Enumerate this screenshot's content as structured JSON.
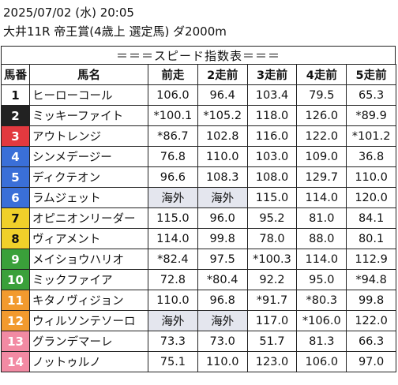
{
  "header": {
    "datetime": "2025/07/02 (水) 20:05",
    "race": "大井11R 帝王賞(4歳上 選定馬) ダ2000m"
  },
  "banner": "＝＝＝スピード指数表＝＝＝",
  "columns": [
    "馬番",
    "馬名",
    "前走",
    "2走前",
    "3走前",
    "4走前",
    "5走前"
  ],
  "rows": [
    {
      "no": "1",
      "name": "ヒーローコール",
      "bg": "#ffffff",
      "fg": "#111111",
      "v": [
        "106.0",
        "96.4",
        "103.4",
        "79.5",
        "65.3"
      ]
    },
    {
      "no": "2",
      "name": "ミッキーファイト",
      "bg": "#222222",
      "fg": "#ffffff",
      "v": [
        "*100.1",
        "*105.2",
        "118.0",
        "126.0",
        "*89.9"
      ]
    },
    {
      "no": "3",
      "name": "アウトレンジ",
      "bg": "#e2393f",
      "fg": "#ffffff",
      "v": [
        "*86.7",
        "102.8",
        "116.0",
        "122.0",
        "*101.2"
      ]
    },
    {
      "no": "4",
      "name": "シンメデージー",
      "bg": "#3a6fd8",
      "fg": "#ffffff",
      "v": [
        "76.8",
        "110.0",
        "103.0",
        "109.0",
        "36.8"
      ]
    },
    {
      "no": "5",
      "name": "ディクテオン",
      "bg": "#3a6fd8",
      "fg": "#ffffff",
      "v": [
        "96.6",
        "108.3",
        "108.0",
        "129.7",
        "110.0"
      ]
    },
    {
      "no": "6",
      "name": "ラムジェット",
      "bg": "#3a6fd8",
      "fg": "#ffffff",
      "v": [
        "海外",
        "海外",
        "115.0",
        "114.0",
        "120.0"
      ],
      "shade": [
        0,
        1
      ]
    },
    {
      "no": "7",
      "name": "オピニオンリーダー",
      "bg": "#f0d02a",
      "fg": "#111111",
      "v": [
        "115.0",
        "96.0",
        "95.2",
        "81.0",
        "84.1"
      ]
    },
    {
      "no": "8",
      "name": "ヴィアメント",
      "bg": "#f0d02a",
      "fg": "#111111",
      "v": [
        "114.0",
        "99.8",
        "78.0",
        "88.0",
        "80.1"
      ]
    },
    {
      "no": "9",
      "name": "メイショウハリオ",
      "bg": "#3aa03a",
      "fg": "#ffffff",
      "v": [
        "*82.4",
        "97.5",
        "*100.3",
        "114.0",
        "112.9"
      ]
    },
    {
      "no": "10",
      "name": "ミックファイア",
      "bg": "#3aa03a",
      "fg": "#ffffff",
      "v": [
        "72.8",
        "*80.4",
        "92.2",
        "95.0",
        "*94.8"
      ]
    },
    {
      "no": "11",
      "name": "キタノヴィジョン",
      "bg": "#f29a2e",
      "fg": "#ffffff",
      "v": [
        "110.0",
        "96.8",
        "*91.7",
        "*80.3",
        "99.8"
      ]
    },
    {
      "no": "12",
      "name": "ウィルソンテソーロ",
      "bg": "#f29a2e",
      "fg": "#ffffff",
      "v": [
        "海外",
        "海外",
        "117.0",
        "*106.0",
        "122.0"
      ],
      "shade": [
        0,
        1
      ]
    },
    {
      "no": "13",
      "name": "グランデマーレ",
      "bg": "#f28aa3",
      "fg": "#ffffff",
      "v": [
        "73.3",
        "73.0",
        "51.7",
        "81.3",
        "66.3"
      ]
    },
    {
      "no": "14",
      "name": "ノットゥルノ",
      "bg": "#f28aa3",
      "fg": "#ffffff",
      "v": [
        "75.1",
        "110.0",
        "123.0",
        "106.0",
        "97.0"
      ]
    }
  ]
}
